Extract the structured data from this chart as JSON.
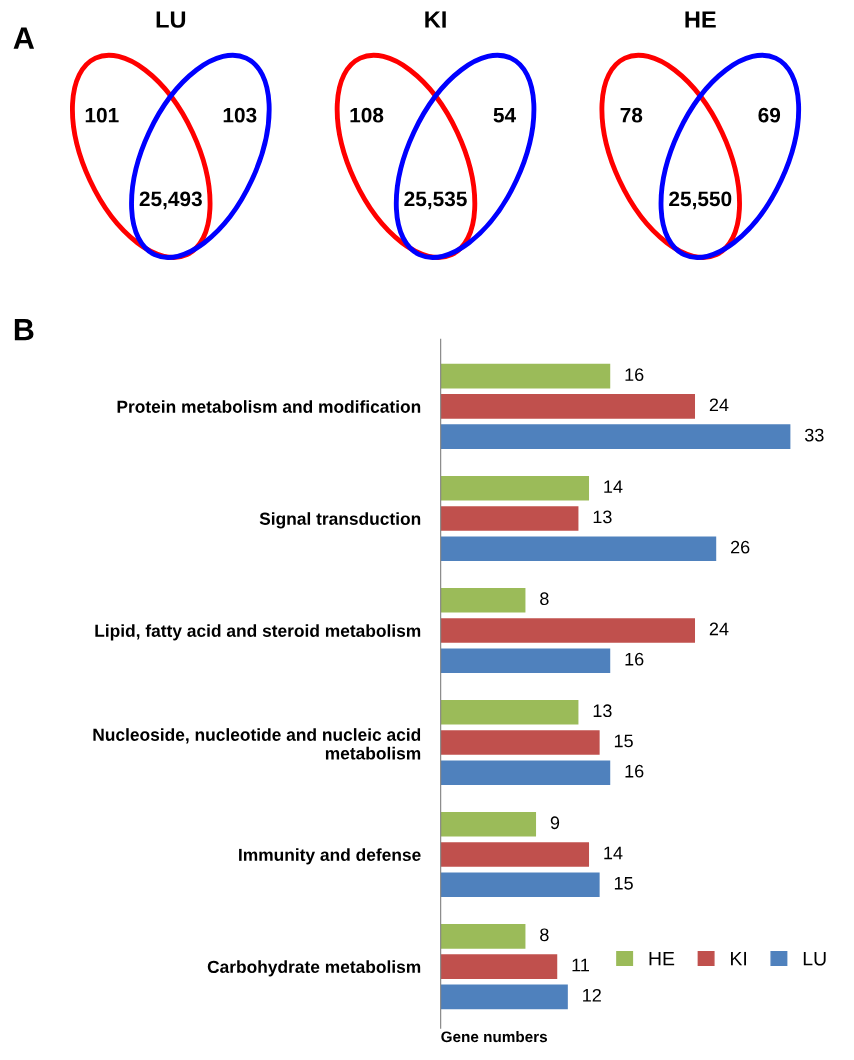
{
  "chart_data": [
    {
      "type": "other",
      "title": "LU",
      "colors": [
        "#ff0000",
        "#0000ff"
      ],
      "annotations": [
        "A",
        "101",
        "103",
        "25,493"
      ]
    },
    {
      "type": "other",
      "title": "KI",
      "colors": [
        "#ff0000",
        "#0000ff"
      ],
      "annotations": [
        "108",
        "54",
        "25,535"
      ]
    },
    {
      "type": "other",
      "title": "HE",
      "colors": [
        "#ff0000",
        "#0000ff"
      ],
      "annotations": [
        "78",
        "69",
        "25,550"
      ]
    },
    {
      "type": "bar",
      "orientation": "horizontal",
      "xlabel": "Gene numbers",
      "annotations": [
        "B"
      ],
      "categories": [
        "Protein metabolism and modification",
        "Signal transduction",
        "Lipid, fatty acid and steroid metabolism",
        "Nucleoside, nucleotide and nucleic acid metabolism",
        "Immunity and defense",
        "Carbohydrate metabolism"
      ],
      "series": [
        {
          "name": "HE",
          "color": "#9bbb59",
          "values": [
            16,
            14,
            8,
            13,
            9,
            8
          ]
        },
        {
          "name": "KI",
          "color": "#c0504d",
          "values": [
            24,
            13,
            24,
            15,
            14,
            11
          ]
        },
        {
          "name": "LU",
          "color": "#4f81bd",
          "values": [
            33,
            26,
            16,
            16,
            15,
            12
          ]
        }
      ],
      "data_labels": true,
      "legend": "bottom right",
      "tick_labels": "y",
      "grid": false
    }
  ]
}
